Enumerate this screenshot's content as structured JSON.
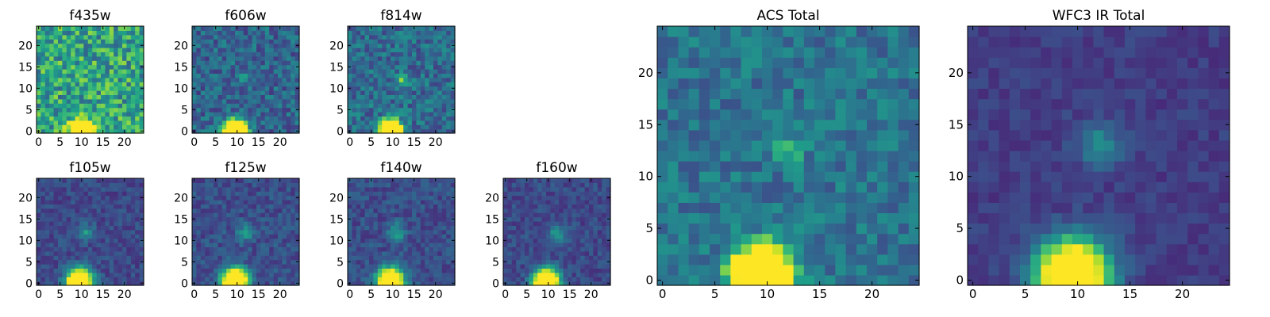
{
  "figure": {
    "colormap": "viridis",
    "colormap_stops": [
      "#440154",
      "#482878",
      "#3e4a89",
      "#31688e",
      "#26828e",
      "#1f9e89",
      "#35b779",
      "#6ece58",
      "#b5de2b",
      "#fde725"
    ]
  },
  "chart_data": [
    {
      "type": "heatmap",
      "title": "f435w",
      "nx": 25,
      "ny": 25,
      "xlim": [
        -0.5,
        24.5
      ],
      "ylim": [
        -0.5,
        24.5
      ],
      "xticks": [
        0,
        5,
        10,
        15,
        20
      ],
      "yticks": [
        0,
        5,
        10,
        15,
        20
      ],
      "noise_level": 0.58,
      "noise_spread": 0.26,
      "sources": [
        {
          "x": 10,
          "y": 0,
          "amplitude": 2.0,
          "width": 1.7
        }
      ],
      "vmin": 0,
      "vmax": 1
    },
    {
      "type": "heatmap",
      "title": "f606w",
      "nx": 25,
      "ny": 25,
      "xlim": [
        -0.5,
        24.5
      ],
      "ylim": [
        -0.5,
        24.5
      ],
      "xticks": [
        0,
        5,
        10,
        15,
        20
      ],
      "yticks": [
        0,
        5,
        10,
        15,
        20
      ],
      "noise_level": 0.32,
      "noise_spread": 0.16,
      "sources": [
        {
          "x": 9.5,
          "y": 0,
          "amplitude": 2.0,
          "width": 1.7
        },
        {
          "x": 11,
          "y": 13,
          "amplitude": 0.15,
          "width": 1.0
        }
      ],
      "vmin": 0,
      "vmax": 1
    },
    {
      "type": "heatmap",
      "title": "f814w",
      "nx": 25,
      "ny": 25,
      "xlim": [
        -0.5,
        24.5
      ],
      "ylim": [
        -0.5,
        24.5
      ],
      "xticks": [
        0,
        5,
        10,
        15,
        20
      ],
      "yticks": [
        0,
        5,
        10,
        15,
        20
      ],
      "noise_level": 0.35,
      "noise_spread": 0.16,
      "sources": [
        {
          "x": 9.5,
          "y": 0,
          "amplitude": 2.0,
          "width": 1.7
        },
        {
          "x": 12,
          "y": 12,
          "amplitude": 0.35,
          "width": 1.1
        }
      ],
      "vmin": 0,
      "vmax": 1
    },
    {
      "type": "heatmap",
      "title": "f105w",
      "nx": 25,
      "ny": 25,
      "xlim": [
        -0.5,
        24.5
      ],
      "ylim": [
        -0.5,
        24.5
      ],
      "xticks": [
        0,
        5,
        10,
        15,
        20
      ],
      "yticks": [
        0,
        5,
        10,
        15,
        20
      ],
      "noise_level": 0.22,
      "noise_spread": 0.09,
      "sources": [
        {
          "x": 9.5,
          "y": 0.5,
          "amplitude": 1.6,
          "width": 2.0
        },
        {
          "x": 11,
          "y": 12,
          "amplitude": 0.3,
          "width": 1.4
        }
      ],
      "vmin": 0,
      "vmax": 1
    },
    {
      "type": "heatmap",
      "title": "f125w",
      "nx": 25,
      "ny": 25,
      "xlim": [
        -0.5,
        24.5
      ],
      "ylim": [
        -0.5,
        24.5
      ],
      "xticks": [
        0,
        5,
        10,
        15,
        20
      ],
      "yticks": [
        0,
        5,
        10,
        15,
        20
      ],
      "noise_level": 0.24,
      "noise_spread": 0.1,
      "sources": [
        {
          "x": 9.5,
          "y": 0.5,
          "amplitude": 1.6,
          "width": 2.0
        },
        {
          "x": 12,
          "y": 12,
          "amplitude": 0.3,
          "width": 1.4
        }
      ],
      "vmin": 0,
      "vmax": 1
    },
    {
      "type": "heatmap",
      "title": "f140w",
      "nx": 25,
      "ny": 25,
      "xlim": [
        -0.5,
        24.5
      ],
      "ylim": [
        -0.5,
        24.5
      ],
      "xticks": [
        0,
        5,
        10,
        15,
        20
      ],
      "yticks": [
        0,
        5,
        10,
        15,
        20
      ],
      "noise_level": 0.24,
      "noise_spread": 0.1,
      "sources": [
        {
          "x": 9.5,
          "y": 0.5,
          "amplitude": 1.6,
          "width": 2.0
        },
        {
          "x": 11,
          "y": 12,
          "amplitude": 0.35,
          "width": 1.4
        }
      ],
      "vmin": 0,
      "vmax": 1
    },
    {
      "type": "heatmap",
      "title": "f160w",
      "nx": 25,
      "ny": 25,
      "xlim": [
        -0.5,
        24.5
      ],
      "ylim": [
        -0.5,
        24.5
      ],
      "xticks": [
        0,
        5,
        10,
        15,
        20
      ],
      "yticks": [
        0,
        5,
        10,
        15,
        20
      ],
      "noise_level": 0.22,
      "noise_spread": 0.09,
      "sources": [
        {
          "x": 9.5,
          "y": 0.5,
          "amplitude": 1.6,
          "width": 2.0
        },
        {
          "x": 12,
          "y": 11.5,
          "amplitude": 0.3,
          "width": 1.4
        }
      ],
      "vmin": 0,
      "vmax": 1
    },
    {
      "type": "heatmap",
      "title": "ACS Total",
      "nx": 25,
      "ny": 25,
      "xlim": [
        -0.5,
        24.5
      ],
      "ylim": [
        -0.5,
        24.5
      ],
      "xticks": [
        0,
        5,
        10,
        15,
        20
      ],
      "yticks": [
        0,
        5,
        10,
        15,
        20
      ],
      "noise_level": 0.38,
      "noise_spread": 0.13,
      "sources": [
        {
          "x": 9.5,
          "y": 0.5,
          "amplitude": 2.0,
          "width": 1.8
        },
        {
          "x": 12,
          "y": 12.5,
          "amplitude": 0.3,
          "width": 1.0
        }
      ],
      "vmin": 0,
      "vmax": 1
    },
    {
      "type": "heatmap",
      "title": "WFC3 IR Total",
      "nx": 25,
      "ny": 25,
      "xlim": [
        -0.5,
        24.5
      ],
      "ylim": [
        -0.5,
        24.5
      ],
      "xticks": [
        0,
        5,
        10,
        15,
        20
      ],
      "yticks": [
        0,
        5,
        10,
        15,
        20
      ],
      "noise_level": 0.18,
      "noise_spread": 0.06,
      "sources": [
        {
          "x": 9.5,
          "y": 0.5,
          "amplitude": 1.5,
          "width": 2.3
        },
        {
          "x": 12,
          "y": 13,
          "amplitude": 0.3,
          "width": 1.5
        }
      ],
      "vmin": 0,
      "vmax": 1
    }
  ]
}
